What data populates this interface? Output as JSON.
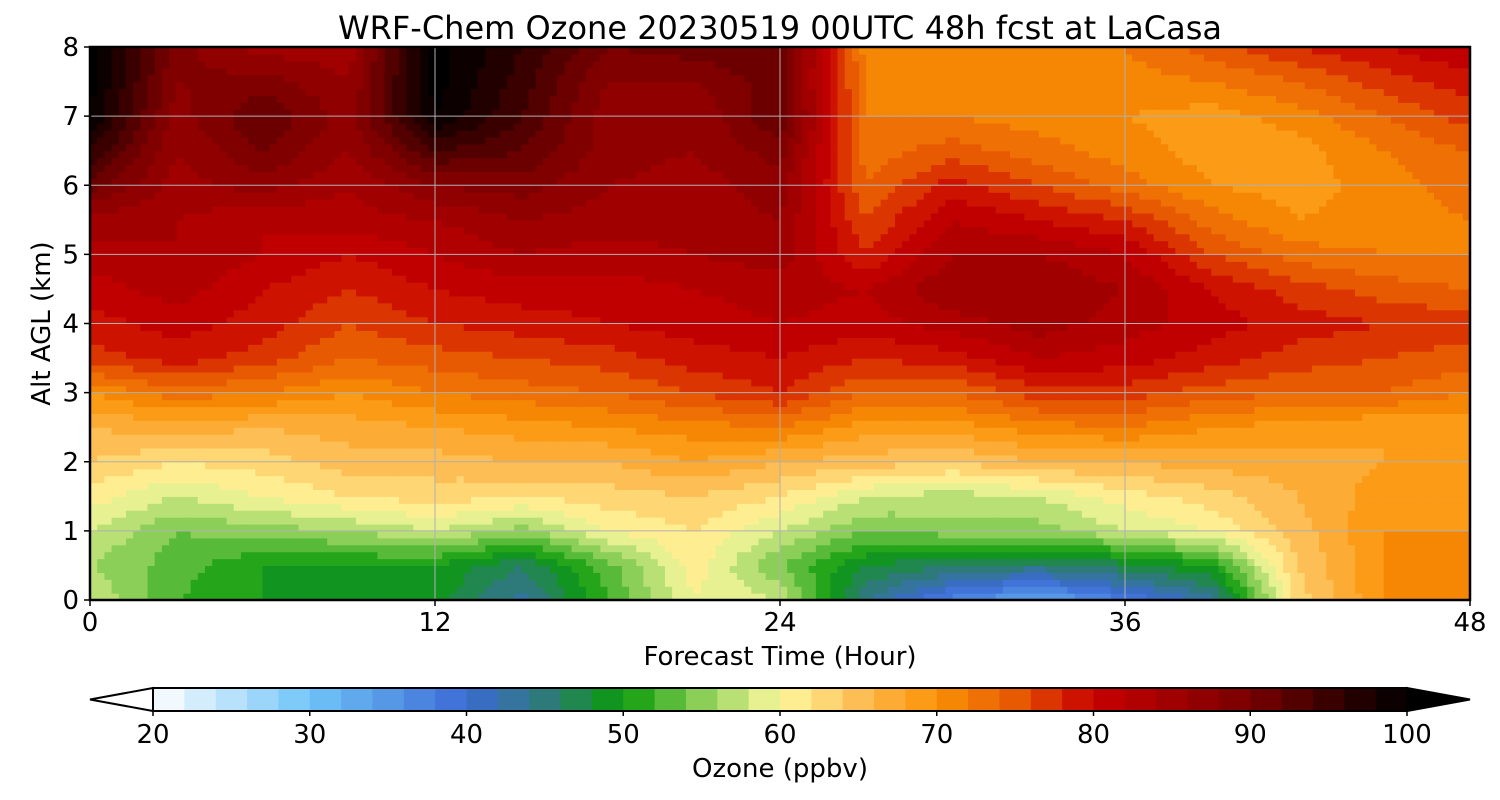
{
  "chart_data": {
    "type": "heatmap",
    "title": "WRF-Chem Ozone  20230519 00UTC 48h fcst at LaCasa",
    "xlabel": "Forecast Time (Hour)",
    "ylabel": "Alt AGL (km)",
    "xlim": [
      0,
      48
    ],
    "ylim": [
      0,
      8
    ],
    "x_ticks": [
      0,
      12,
      24,
      36,
      48
    ],
    "y_ticks": [
      0,
      1,
      2,
      3,
      4,
      5,
      6,
      7,
      8
    ],
    "grid": true,
    "x": [
      0,
      3,
      6,
      9,
      12,
      15,
      18,
      21,
      24,
      27,
      30,
      33,
      36,
      39,
      42,
      45,
      48
    ],
    "y": [
      0,
      0.5,
      1,
      1.5,
      2,
      2.5,
      3,
      3.5,
      4,
      4.5,
      5,
      5.5,
      6,
      6.5,
      7,
      7.5,
      8
    ],
    "z": [
      [
        58,
        52,
        50,
        49,
        49,
        43,
        52,
        60,
        58,
        44,
        37,
        33,
        38,
        43,
        63,
        70,
        70
      ],
      [
        56,
        53,
        50,
        50,
        50,
        46,
        53,
        61,
        54,
        48,
        46,
        45,
        47,
        50,
        64,
        70,
        70
      ],
      [
        58,
        54,
        55,
        56,
        58,
        55,
        60,
        62,
        58,
        54,
        55,
        55,
        58,
        60,
        65,
        70,
        70
      ],
      [
        61,
        58,
        60,
        62,
        63,
        62,
        63,
        64,
        62,
        58,
        57,
        58,
        61,
        63,
        66,
        69,
        70
      ],
      [
        64,
        62,
        63,
        65,
        65,
        66,
        66,
        68,
        66,
        65,
        64,
        66,
        66,
        67,
        67,
        68,
        68
      ],
      [
        66,
        67,
        66,
        67,
        68,
        69,
        70,
        71,
        72,
        69,
        69,
        71,
        72,
        70,
        69,
        68,
        68
      ],
      [
        70,
        73,
        72,
        70,
        72,
        73,
        74,
        76,
        78,
        74,
        74,
        77,
        77,
        75,
        74,
        74,
        72
      ],
      [
        77,
        79,
        77,
        74,
        75,
        76,
        77,
        79,
        80,
        78,
        79,
        82,
        81,
        79,
        77,
        76,
        75
      ],
      [
        79,
        81,
        79,
        76,
        78,
        79,
        80,
        81,
        82,
        81,
        83,
        85,
        83,
        81,
        79,
        78,
        77
      ],
      [
        81,
        83,
        80,
        78,
        80,
        81,
        81,
        82,
        83,
        82,
        86,
        86,
        84,
        80,
        77,
        75,
        74
      ],
      [
        83,
        84,
        82,
        80,
        82,
        84,
        83,
        84,
        85,
        78,
        84,
        84,
        82,
        76,
        73,
        72,
        72
      ],
      [
        85,
        84,
        82,
        83,
        84,
        86,
        85,
        85,
        86,
        76,
        82,
        80,
        78,
        73,
        70,
        71,
        72
      ],
      [
        91,
        85,
        87,
        84,
        88,
        89,
        86,
        85,
        87,
        74,
        79,
        76,
        73,
        70,
        69,
        71,
        73
      ],
      [
        96,
        86,
        90,
        86,
        94,
        92,
        87,
        86,
        89,
        73,
        75,
        73,
        71,
        69,
        69,
        72,
        74
      ],
      [
        100,
        87,
        92,
        87,
        100,
        94,
        87,
        86,
        92,
        72,
        72,
        71,
        70,
        69,
        71,
        74,
        77
      ],
      [
        101,
        88,
        89,
        86,
        101,
        95,
        88,
        88,
        91,
        72,
        71,
        71,
        71,
        72,
        74,
        77,
        79
      ],
      [
        101,
        89,
        85,
        85,
        101,
        96,
        90,
        91,
        92,
        71,
        71,
        72,
        72,
        75,
        78,
        80,
        82
      ]
    ],
    "colorbar": {
      "label": "Ozone  (ppbv)",
      "min": 20,
      "max": 100,
      "ticks": [
        20,
        30,
        40,
        50,
        60,
        70,
        80,
        90,
        100
      ],
      "extend": "both",
      "level_step": 2,
      "stops": [
        {
          "v": 20,
          "c": "#ffffff"
        },
        {
          "v": 30,
          "c": "#70c4f8"
        },
        {
          "v": 40,
          "c": "#3c6ad4"
        },
        {
          "v": 45,
          "c": "#2e7a7a"
        },
        {
          "v": 50,
          "c": "#0b9a0b"
        },
        {
          "v": 55,
          "c": "#8bcf58"
        },
        {
          "v": 60,
          "c": "#fffaa0"
        },
        {
          "v": 65,
          "c": "#fdbe55"
        },
        {
          "v": 70,
          "c": "#fa9206"
        },
        {
          "v": 75,
          "c": "#e85a02"
        },
        {
          "v": 80,
          "c": "#c80000"
        },
        {
          "v": 85,
          "c": "#a00000"
        },
        {
          "v": 90,
          "c": "#780000"
        },
        {
          "v": 95,
          "c": "#3a0000"
        },
        {
          "v": 100,
          "c": "#000000"
        }
      ]
    }
  }
}
